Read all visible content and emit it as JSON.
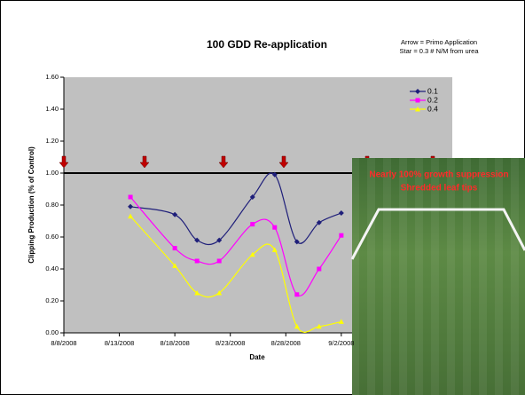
{
  "chart_data": {
    "type": "line",
    "title": "100 GDD Re-application",
    "annotations": [
      "Arrow = Primo Application",
      "Star = 0.3 # N/M from urea"
    ],
    "x_label": "Date",
    "y_label": "Clipping Production (% of Control)",
    "x": [
      "8/14/2008",
      "8/18/2008",
      "8/20/2008",
      "8/22/2008",
      "8/25/2008",
      "8/27/2008",
      "8/29/2008",
      "8/31/2008",
      "9/2/2008"
    ],
    "series": [
      {
        "name": "0.1",
        "color": "#1f1f7a",
        "marker": "diamond",
        "values": [
          0.79,
          0.74,
          0.58,
          0.58,
          0.85,
          0.99,
          0.57,
          0.69,
          0.75
        ]
      },
      {
        "name": "0.2",
        "color": "#ff00ff",
        "marker": "square",
        "values": [
          0.85,
          0.53,
          0.45,
          0.45,
          0.68,
          0.66,
          0.24,
          0.4,
          0.61
        ]
      },
      {
        "name": "0.4",
        "color": "#ffff00",
        "marker": "triangle",
        "values": [
          0.73,
          0.42,
          0.25,
          0.25,
          0.49,
          0.52,
          0.04,
          0.04,
          0.07
        ]
      }
    ],
    "reference_line": 1.0,
    "xlim": [
      "8/8/2008",
      "9/12/2008"
    ],
    "xticks": [
      "8/8/2008",
      "8/13/2008",
      "8/18/2008",
      "8/23/2008",
      "8/28/2008",
      "9/2/2008"
    ],
    "ylim": [
      0,
      1.6
    ],
    "yticks": [
      {
        "value": 0,
        "label": "0.00"
      },
      {
        "value": 0.2,
        "label": "0.20"
      },
      {
        "value": 0.4,
        "label": "0.40"
      },
      {
        "value": 0.6,
        "label": "0.60"
      },
      {
        "value": 0.8,
        "label": "0.80"
      },
      {
        "value": 1.0,
        "label": "1.00"
      },
      {
        "value": 1.2,
        "label": "1.20"
      },
      {
        "value": 1.4,
        "label": "1.40"
      },
      {
        "value": 1.6,
        "label": "1.60"
      }
    ],
    "photo_caption": [
      "Nearly 100% growth suppression",
      "Shredded leaf tips"
    ]
  }
}
